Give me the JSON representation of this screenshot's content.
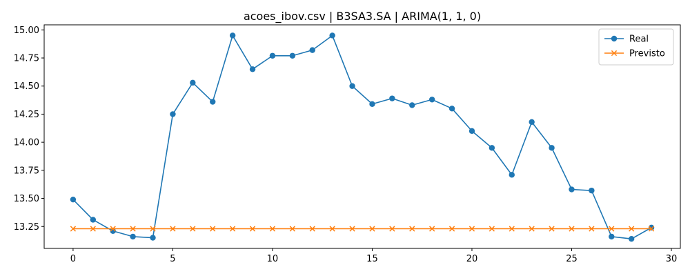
{
  "chart_data": {
    "type": "line",
    "title": "acoes_ibov.csv | B3SA3.SA | ARIMA(1, 1, 0)",
    "xlabel": "",
    "ylabel": "",
    "xlim": [
      -1.45,
      30.45
    ],
    "ylim": [
      13.055,
      15.045
    ],
    "x_ticks": [
      0,
      5,
      10,
      15,
      20,
      25,
      30
    ],
    "x_tick_labels": [
      "0",
      "5",
      "10",
      "15",
      "20",
      "25",
      "30"
    ],
    "y_ticks": [
      13.25,
      13.5,
      13.75,
      14.0,
      14.25,
      14.5,
      14.75,
      15.0
    ],
    "y_tick_labels": [
      "13.25",
      "13.50",
      "13.75",
      "14.00",
      "14.25",
      "14.50",
      "14.75",
      "15.00"
    ],
    "grid": false,
    "legend_position": "top-right",
    "x": [
      0,
      1,
      2,
      3,
      4,
      5,
      6,
      7,
      8,
      9,
      10,
      11,
      12,
      13,
      14,
      15,
      16,
      17,
      18,
      19,
      20,
      21,
      22,
      23,
      24,
      25,
      26,
      27,
      28,
      29
    ],
    "series": [
      {
        "name": "Real",
        "color": "#1f77b4",
        "marker": "circle",
        "values": [
          13.49,
          13.31,
          13.21,
          13.16,
          13.15,
          14.25,
          14.53,
          14.36,
          14.95,
          14.65,
          14.77,
          14.77,
          14.82,
          14.95,
          14.5,
          14.34,
          14.39,
          14.33,
          14.38,
          14.3,
          14.1,
          13.95,
          13.71,
          14.18,
          13.95,
          13.58,
          13.57,
          13.16,
          13.14,
          13.24
        ]
      },
      {
        "name": "Previsto",
        "color": "#ff7f0e",
        "marker": "x",
        "values": [
          13.23,
          13.23,
          13.23,
          13.23,
          13.23,
          13.23,
          13.23,
          13.23,
          13.23,
          13.23,
          13.23,
          13.23,
          13.23,
          13.23,
          13.23,
          13.23,
          13.23,
          13.23,
          13.23,
          13.23,
          13.23,
          13.23,
          13.23,
          13.23,
          13.23,
          13.23,
          13.23,
          13.23,
          13.23,
          13.23
        ]
      }
    ]
  }
}
